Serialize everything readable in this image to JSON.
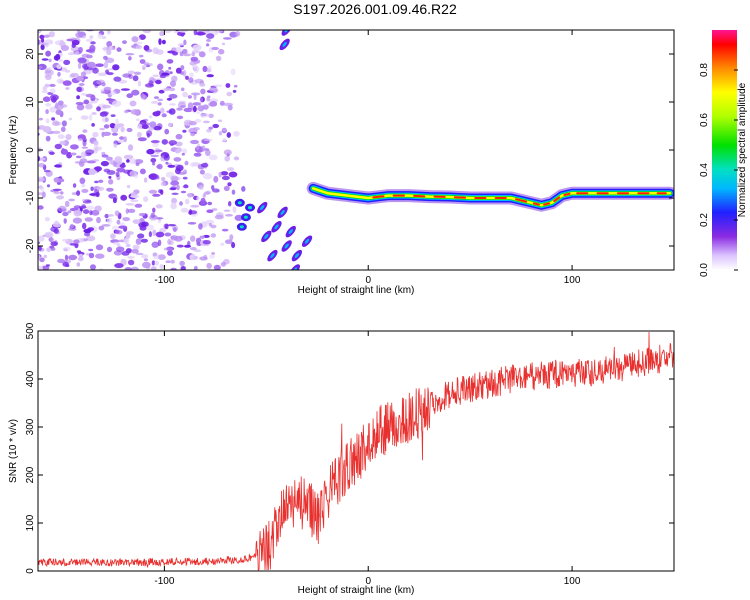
{
  "title": "S197.2026.001.09.46.R22",
  "chart_data": [
    {
      "type": "heatmap",
      "name": "spectrogram",
      "xlabel": "Height of straight line (km)",
      "ylabel": "Frequency (Hz)",
      "xlim": [
        -162,
        150
      ],
      "ylim": [
        -25,
        25
      ],
      "xticks": [
        -100,
        0,
        100
      ],
      "xtick_labels": [
        "-100",
        "0",
        "100"
      ],
      "yticks": [
        20,
        10,
        0,
        -10,
        -20
      ],
      "ytick_labels": [
        "20",
        "10",
        "0",
        "-10",
        "-20"
      ],
      "signal_track": {
        "x": [
          -27,
          -20,
          -10,
          0,
          10,
          20,
          30,
          40,
          50,
          60,
          70,
          80,
          85,
          90,
          95,
          100,
          110,
          120,
          130,
          140,
          148
        ],
        "y": [
          -8,
          -9,
          -9.5,
          -10,
          -9.5,
          -9.5,
          -9.7,
          -9.8,
          -10,
          -10,
          -10,
          -11,
          -11.5,
          -11,
          -9.5,
          -9,
          -9,
          -9,
          -9,
          -9,
          -9
        ]
      },
      "noise_region_x": [
        -162,
        -65
      ],
      "colorbar": {
        "label": "Normalized spectral amplitude",
        "ticks": [
          0.0,
          0.2,
          0.4,
          0.6,
          0.8
        ],
        "tick_labels": [
          "0.0",
          "0.2",
          "0.4",
          "0.6",
          "0.8"
        ],
        "range": [
          0,
          0.96
        ]
      }
    },
    {
      "type": "line",
      "name": "snr",
      "xlabel": "Height of straight line (km)",
      "ylabel": "SNR (10 * v/v)",
      "xlim": [
        -162,
        150
      ],
      "ylim": [
        0,
        500
      ],
      "xticks": [
        -100,
        0,
        100
      ],
      "xtick_labels": [
        "-100",
        "0",
        "100"
      ],
      "yticks": [
        0,
        100,
        200,
        300,
        400,
        500
      ],
      "ytick_labels": [
        "0",
        "100",
        "200",
        "300",
        "400",
        "500"
      ],
      "color": "#e8302e",
      "trend": {
        "x": [
          -162,
          -120,
          -80,
          -60,
          -50,
          -45,
          -40,
          -35,
          -30,
          -25,
          -20,
          -15,
          -10,
          -5,
          0,
          5,
          10,
          15,
          20,
          25,
          30,
          40,
          50,
          60,
          70,
          80,
          90,
          100,
          110,
          120,
          130,
          140,
          150
        ],
        "y": [
          18,
          18,
          20,
          25,
          40,
          80,
          140,
          150,
          130,
          120,
          160,
          190,
          220,
          240,
          260,
          290,
          300,
          310,
          320,
          330,
          350,
          370,
          380,
          390,
          400,
          405,
          410,
          410,
          415,
          420,
          430,
          440,
          445
        ]
      },
      "noise_amplitude": [
        {
          "x": [
            -162,
            -55
          ],
          "amp": 8
        },
        {
          "x": [
            -55,
            -20
          ],
          "amp": 60
        },
        {
          "x": [
            -20,
            30
          ],
          "amp": 55
        },
        {
          "x": [
            30,
            150
          ],
          "amp": 30
        }
      ],
      "peak_x_near": [
        -32,
        130
      ],
      "peak_y_near": [
        300,
        490
      ]
    }
  ]
}
